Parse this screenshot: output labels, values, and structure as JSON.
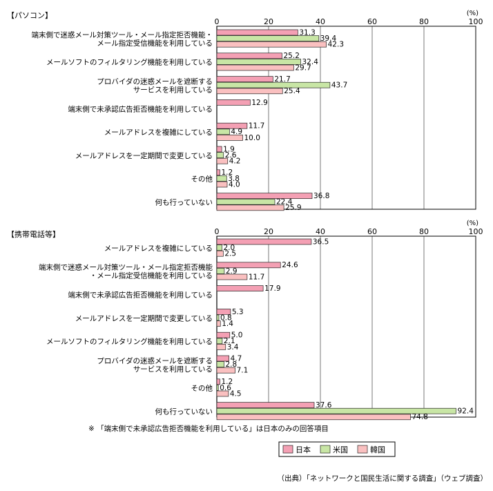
{
  "chart_data": [
    {
      "type": "bar",
      "orientation": "horizontal",
      "title": "【パソコン】",
      "unit": "(%)",
      "xlim": [
        0,
        100
      ],
      "ticks": [
        0,
        20,
        40,
        60,
        80,
        100
      ],
      "grid": true,
      "categories": [
        [
          "端末側で迷惑メール対策ツール・メール指定拒否機能・",
          "メール指定受信機能を利用している"
        ],
        [
          "メールソフトのフィルタリング機能を利用している"
        ],
        [
          "プロバイダの迷惑メールを遮断する",
          "サービスを利用している"
        ],
        [
          "端末側で未承認広告拒否機能を利用している"
        ],
        [
          "メールアドレスを複雑にしている"
        ],
        [
          "メールアドレスを一定期間で変更している"
        ],
        [
          "その他"
        ],
        [
          "何も行っていない"
        ]
      ],
      "series": [
        {
          "name": "日本",
          "color": "#f4a0b4",
          "values": [
            31.3,
            25.2,
            21.7,
            12.9,
            11.7,
            1.9,
            1.2,
            36.8
          ]
        },
        {
          "name": "米国",
          "color": "#c8e6a5",
          "values": [
            39.4,
            32.4,
            43.7,
            null,
            4.9,
            2.6,
            3.8,
            22.4
          ]
        },
        {
          "name": "韓国",
          "color": "#fac0c0",
          "values": [
            42.3,
            29.7,
            25.4,
            null,
            10.0,
            4.2,
            4.0,
            25.9
          ]
        }
      ],
      "labels": [
        [
          "31.3",
          "25.2",
          "21.7",
          "12.9",
          "11.7",
          "1.9",
          "1.2",
          "36.8"
        ],
        [
          "39.4",
          "32.4",
          "43.7",
          "",
          "4.9",
          "2.6",
          "3.8",
          "22.4"
        ],
        [
          "42.3",
          "29.7",
          "25.4",
          "",
          "10.0",
          "4.2",
          "4.0",
          "25.9"
        ]
      ]
    },
    {
      "type": "bar",
      "orientation": "horizontal",
      "title": "【携帯電話等】",
      "unit": "(%)",
      "xlim": [
        0,
        100
      ],
      "ticks": [
        0,
        20,
        40,
        60,
        80,
        100
      ],
      "grid": true,
      "categories": [
        [
          "メールアドレスを複雑にしている"
        ],
        [
          "端末側で迷惑メール対策ツール・メール指定拒否機能",
          "・メール指定受信機能を利用している"
        ],
        [
          "端末側で未承認広告拒否機能を利用している"
        ],
        [
          "メールアドレスを一定期間で変更している"
        ],
        [
          "メールソフトのフィルタリング機能を利用している"
        ],
        [
          "プロバイダの迷惑メールを遮断する",
          "サービスを利用している"
        ],
        [
          "その他"
        ],
        [
          "何も行っていない"
        ]
      ],
      "series": [
        {
          "name": "日本",
          "color": "#f4a0b4",
          "values": [
            36.5,
            24.6,
            17.9,
            5.3,
            5.0,
            4.7,
            1.2,
            37.6
          ]
        },
        {
          "name": "米国",
          "color": "#c8e6a5",
          "values": [
            2.0,
            2.9,
            null,
            0.8,
            2.1,
            2.8,
            0.6,
            92.4
          ]
        },
        {
          "name": "韓国",
          "color": "#fac0c0",
          "values": [
            2.5,
            11.7,
            null,
            1.4,
            3.4,
            7.1,
            4.5,
            74.8
          ]
        }
      ],
      "labels": [
        [
          "36.5",
          "24.6",
          "17.9",
          "5.3",
          "5.0",
          "4.7",
          "1.2",
          "37.6"
        ],
        [
          "2.0",
          "2.9",
          "",
          "0.8",
          "2.1",
          "2.8",
          "0.6",
          "92.4"
        ],
        [
          "2.5",
          "11.7",
          "",
          "1.4",
          "3.4",
          "7.1",
          "4.5",
          "74.8"
        ]
      ]
    }
  ],
  "note": "※ 「端末側で未承認広告拒否機能を利用している」は日本のみの回答項目",
  "source": "（出典）「ネットワークと国民生活に関する調査」（ウェブ調査）"
}
